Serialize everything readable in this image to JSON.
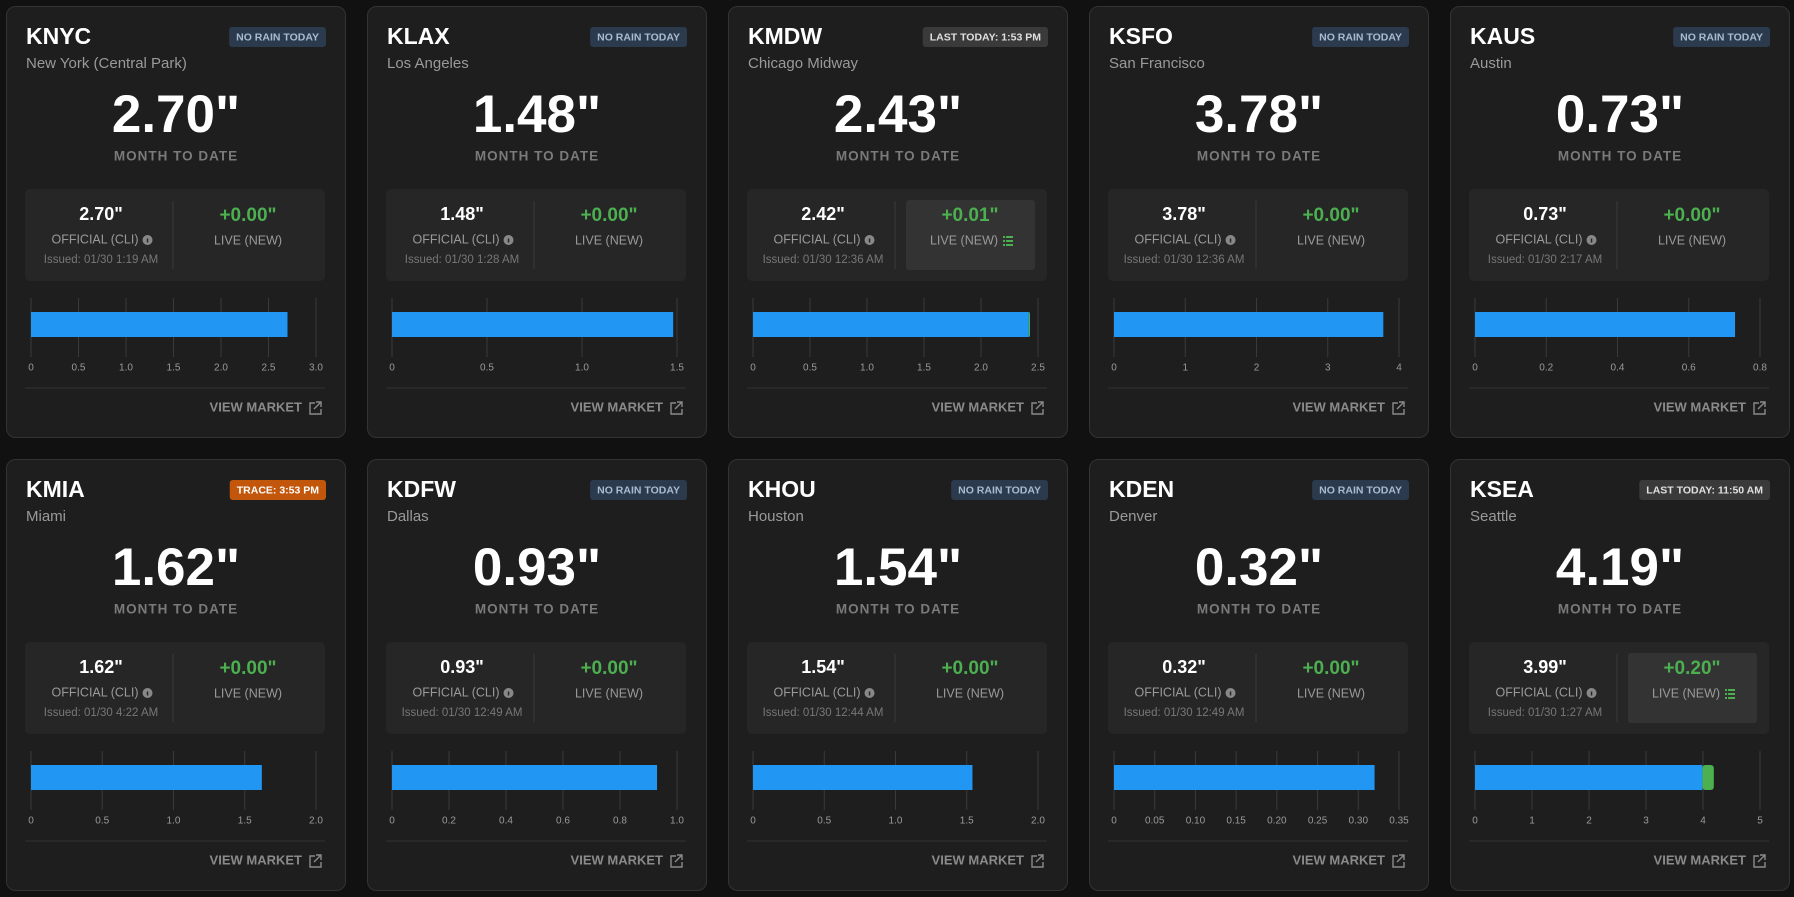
{
  "labels": {
    "month_to_date": "MONTH TO DATE",
    "official": "OFFICIAL (CLI)",
    "live": "LIVE (NEW)",
    "view_market": "VIEW MARKET"
  },
  "chart_colors": [
    "#2196f3",
    "#4caf50"
  ],
  "cards": [
    {
      "station": "KNYC",
      "city": "New York (Central Park)",
      "badge": {
        "label": "NO RAIN TODAY",
        "color": "#2c3a4e",
        "text_color": "#a9bbd1"
      },
      "total": "2.70\"",
      "official": "2.70\"",
      "issued": "Issued: 01/30 1:19 AM",
      "live": "+0.00\"",
      "live_highlight": false,
      "chart": {
        "type": "bar",
        "values": [
          2.7,
          0.0
        ],
        "xlim": [
          0,
          3
        ],
        "xticks": [
          0,
          0.5,
          {
            "value": 1,
            "label": "1.0"
          },
          1.5,
          {
            "value": 2,
            "label": "2.0"
          },
          2.5,
          {
            "value": 3,
            "label": "3.0"
          }
        ]
      }
    },
    {
      "station": "KLAX",
      "city": "Los Angeles",
      "badge": {
        "label": "NO RAIN TODAY",
        "color": "#2c3a4e",
        "text_color": "#a9bbd1"
      },
      "total": "1.48\"",
      "official": "1.48\"",
      "issued": "Issued: 01/30 1:28 AM",
      "live": "+0.00\"",
      "live_highlight": false,
      "chart": {
        "type": "bar",
        "values": [
          1.48,
          0.0
        ],
        "xlim": [
          0,
          1.5
        ],
        "xticks": [
          0,
          0.5,
          {
            "value": 1,
            "label": "1.0"
          },
          1.5
        ]
      }
    },
    {
      "station": "KMDW",
      "city": "Chicago Midway",
      "badge": {
        "label": "LAST TODAY: 1:53 PM",
        "color": "#3a3a3a",
        "text_color": "#e0e0e0"
      },
      "total": "2.43\"",
      "official": "2.42\"",
      "issued": "Issued: 01/30 12:36 AM",
      "live": "+0.01\"",
      "live_highlight": true,
      "chart": {
        "type": "bar",
        "values": [
          2.42,
          0.01
        ],
        "xlim": [
          0,
          2.5
        ],
        "xticks": [
          0,
          0.5,
          {
            "value": 1,
            "label": "1.0"
          },
          1.5,
          {
            "value": 2,
            "label": "2.0"
          },
          2.5
        ]
      }
    },
    {
      "station": "KSFO",
      "city": "San Francisco",
      "badge": {
        "label": "NO RAIN TODAY",
        "color": "#2c3a4e",
        "text_color": "#a9bbd1"
      },
      "total": "3.78\"",
      "official": "3.78\"",
      "issued": "Issued: 01/30 12:36 AM",
      "live": "+0.00\"",
      "live_highlight": false,
      "chart": {
        "type": "bar",
        "values": [
          3.78,
          0.0
        ],
        "xlim": [
          0,
          4
        ],
        "xticks": [
          0,
          1,
          2,
          3,
          4
        ]
      }
    },
    {
      "station": "KAUS",
      "city": "Austin",
      "badge": {
        "label": "NO RAIN TODAY",
        "color": "#2c3a4e",
        "text_color": "#a9bbd1"
      },
      "total": "0.73\"",
      "official": "0.73\"",
      "issued": "Issued: 01/30 2:17 AM",
      "live": "+0.00\"",
      "live_highlight": false,
      "chart": {
        "type": "bar",
        "values": [
          0.73,
          0.0
        ],
        "xlim": [
          0,
          0.8
        ],
        "xticks": [
          0,
          0.2,
          0.4,
          0.6,
          0.8
        ]
      }
    },
    {
      "station": "KMIA",
      "city": "Miami",
      "badge": {
        "label": "TRACE: 3:53 PM",
        "color": "#c2570c",
        "text_color": "#ffffff"
      },
      "total": "1.62\"",
      "official": "1.62\"",
      "issued": "Issued: 01/30 4:22 AM",
      "live": "+0.00\"",
      "live_highlight": false,
      "chart": {
        "type": "bar",
        "values": [
          1.62,
          0.0
        ],
        "xlim": [
          0,
          2
        ],
        "xticks": [
          0,
          0.5,
          {
            "value": 1,
            "label": "1.0"
          },
          1.5,
          {
            "value": 2,
            "label": "2.0"
          }
        ]
      }
    },
    {
      "station": "KDFW",
      "city": "Dallas",
      "badge": {
        "label": "NO RAIN TODAY",
        "color": "#2c3a4e",
        "text_color": "#a9bbd1"
      },
      "total": "0.93\"",
      "official": "0.93\"",
      "issued": "Issued: 01/30 12:49 AM",
      "live": "+0.00\"",
      "live_highlight": false,
      "chart": {
        "type": "bar",
        "values": [
          0.93,
          0.0
        ],
        "xlim": [
          0,
          1
        ],
        "xticks": [
          0,
          0.2,
          0.4,
          0.6,
          0.8,
          {
            "value": 1,
            "label": "1.0"
          }
        ]
      }
    },
    {
      "station": "KHOU",
      "city": "Houston",
      "badge": {
        "label": "NO RAIN TODAY",
        "color": "#2c3a4e",
        "text_color": "#a9bbd1"
      },
      "total": "1.54\"",
      "official": "1.54\"",
      "issued": "Issued: 01/30 12:44 AM",
      "live": "+0.00\"",
      "live_highlight": false,
      "chart": {
        "type": "bar",
        "values": [
          1.54,
          0.0
        ],
        "xlim": [
          0,
          2
        ],
        "xticks": [
          0,
          0.5,
          {
            "value": 1,
            "label": "1.0"
          },
          1.5,
          {
            "value": 2,
            "label": "2.0"
          }
        ]
      }
    },
    {
      "station": "KDEN",
      "city": "Denver",
      "badge": {
        "label": "NO RAIN TODAY",
        "color": "#2c3a4e",
        "text_color": "#a9bbd1"
      },
      "total": "0.32\"",
      "official": "0.32\"",
      "issued": "Issued: 01/30 12:49 AM",
      "live": "+0.00\"",
      "live_highlight": false,
      "chart": {
        "type": "bar",
        "values": [
          0.32,
          0.0
        ],
        "xlim": [
          0,
          0.35
        ],
        "xticks": [
          0,
          0.05,
          {
            "value": 0.1,
            "label": "0.10"
          },
          0.15,
          {
            "value": 0.2,
            "label": "0.20"
          },
          0.25,
          {
            "value": 0.3,
            "label": "0.30"
          },
          0.35
        ]
      }
    },
    {
      "station": "KSEA",
      "city": "Seattle",
      "badge": {
        "label": "LAST TODAY: 11:50 AM",
        "color": "#3a3a3a",
        "text_color": "#e0e0e0"
      },
      "total": "4.19\"",
      "official": "3.99\"",
      "issued": "Issued: 01/30 1:27 AM",
      "live": "+0.20\"",
      "live_highlight": true,
      "chart": {
        "type": "bar",
        "values": [
          3.99,
          0.2
        ],
        "xlim": [
          0,
          5
        ],
        "xticks": [
          0,
          1,
          2,
          3,
          4,
          5
        ]
      }
    }
  ]
}
